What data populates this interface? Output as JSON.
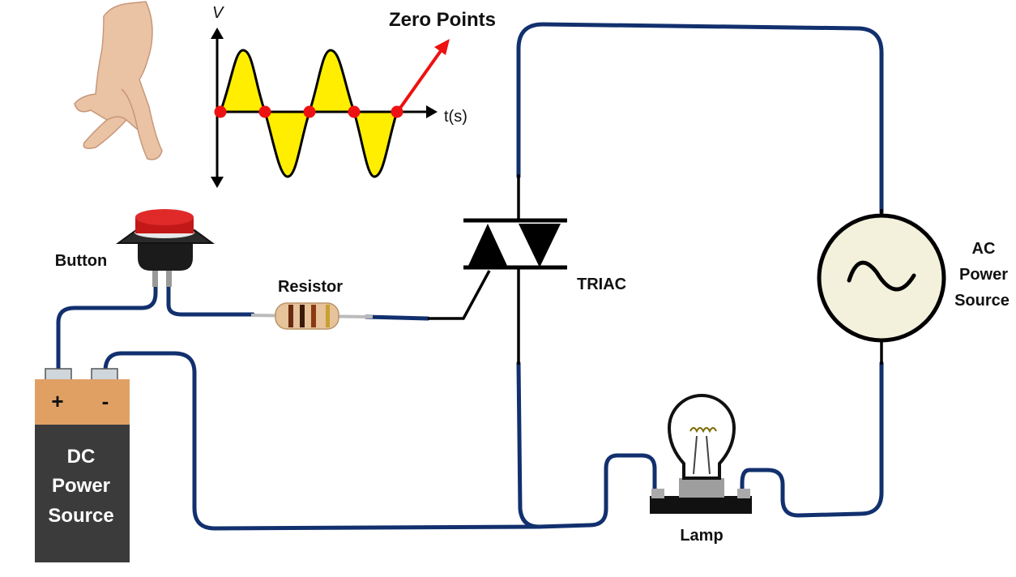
{
  "labels": {
    "zero_points": "Zero Points",
    "v_axis": "V",
    "t_axis": "t(s)",
    "button": "Button",
    "resistor": "Resistor",
    "triac": "TRIAC",
    "ac_source": [
      "AC",
      "Power",
      "Source"
    ],
    "dc_source": [
      "DC",
      "Power",
      "Source"
    ],
    "battery_plus": "+",
    "battery_minus": "-",
    "lamp": "Lamp"
  },
  "colors": {
    "wire": "#12306e",
    "wave_fill": "#ffee00",
    "zero_point": "#ee1111",
    "arrow": "#ee1111",
    "button_cap": "#d42020",
    "battery_top": "#e0a064",
    "battery_body": "#3b3b3b",
    "ac_source_fill": "#f3f0dc"
  },
  "icons": {
    "hand": "pointing-hand-icon",
    "ac_symbol": "sine-wave-icon"
  }
}
